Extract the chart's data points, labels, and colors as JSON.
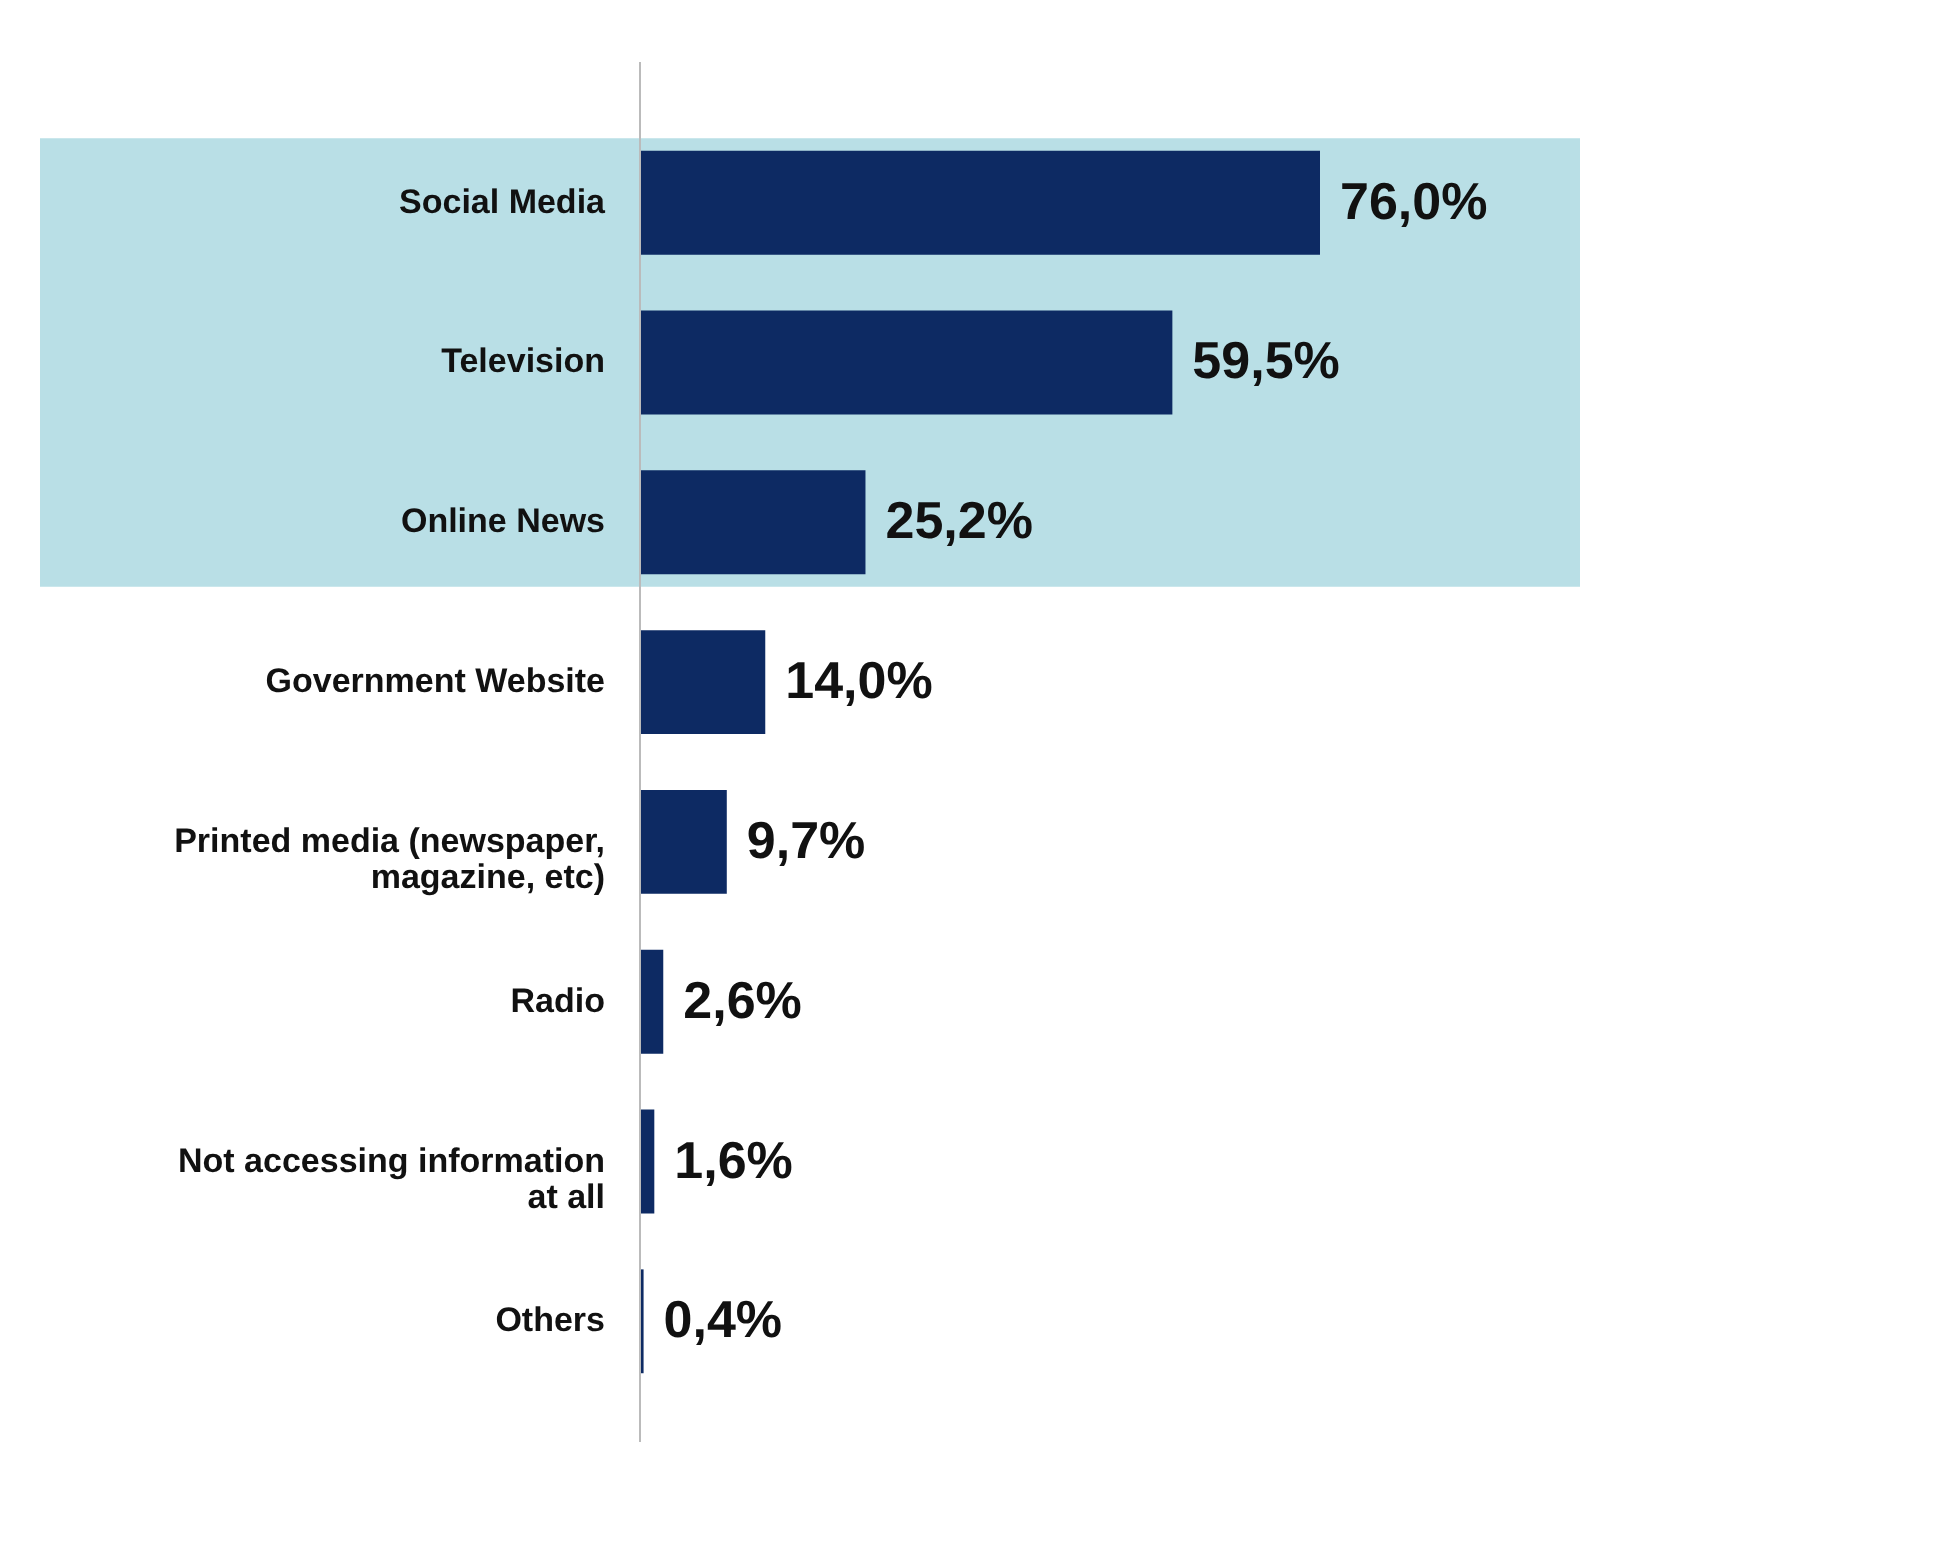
{
  "chart_data": {
    "type": "bar",
    "orientation": "horizontal",
    "categories": [
      "Social Media",
      "Television",
      "Online News",
      "Government Website",
      "Printed media (newspaper, magazine, etc)",
      "Radio",
      "Not accessing information at all",
      "Others"
    ],
    "values": [
      76.0,
      59.5,
      25.2,
      14.0,
      9.7,
      2.6,
      1.6,
      0.4
    ],
    "value_labels": [
      "76,0%",
      "59,5%",
      "25,2%",
      "14,0%",
      "9,7%",
      "2,6%",
      "1,6%",
      "0,4%"
    ],
    "color": "#0d2a63",
    "bands": [
      {
        "axis": "y",
        "from": "Social Media",
        "to": "Online News",
        "color": "#b9dfe6"
      }
    ]
  }
}
